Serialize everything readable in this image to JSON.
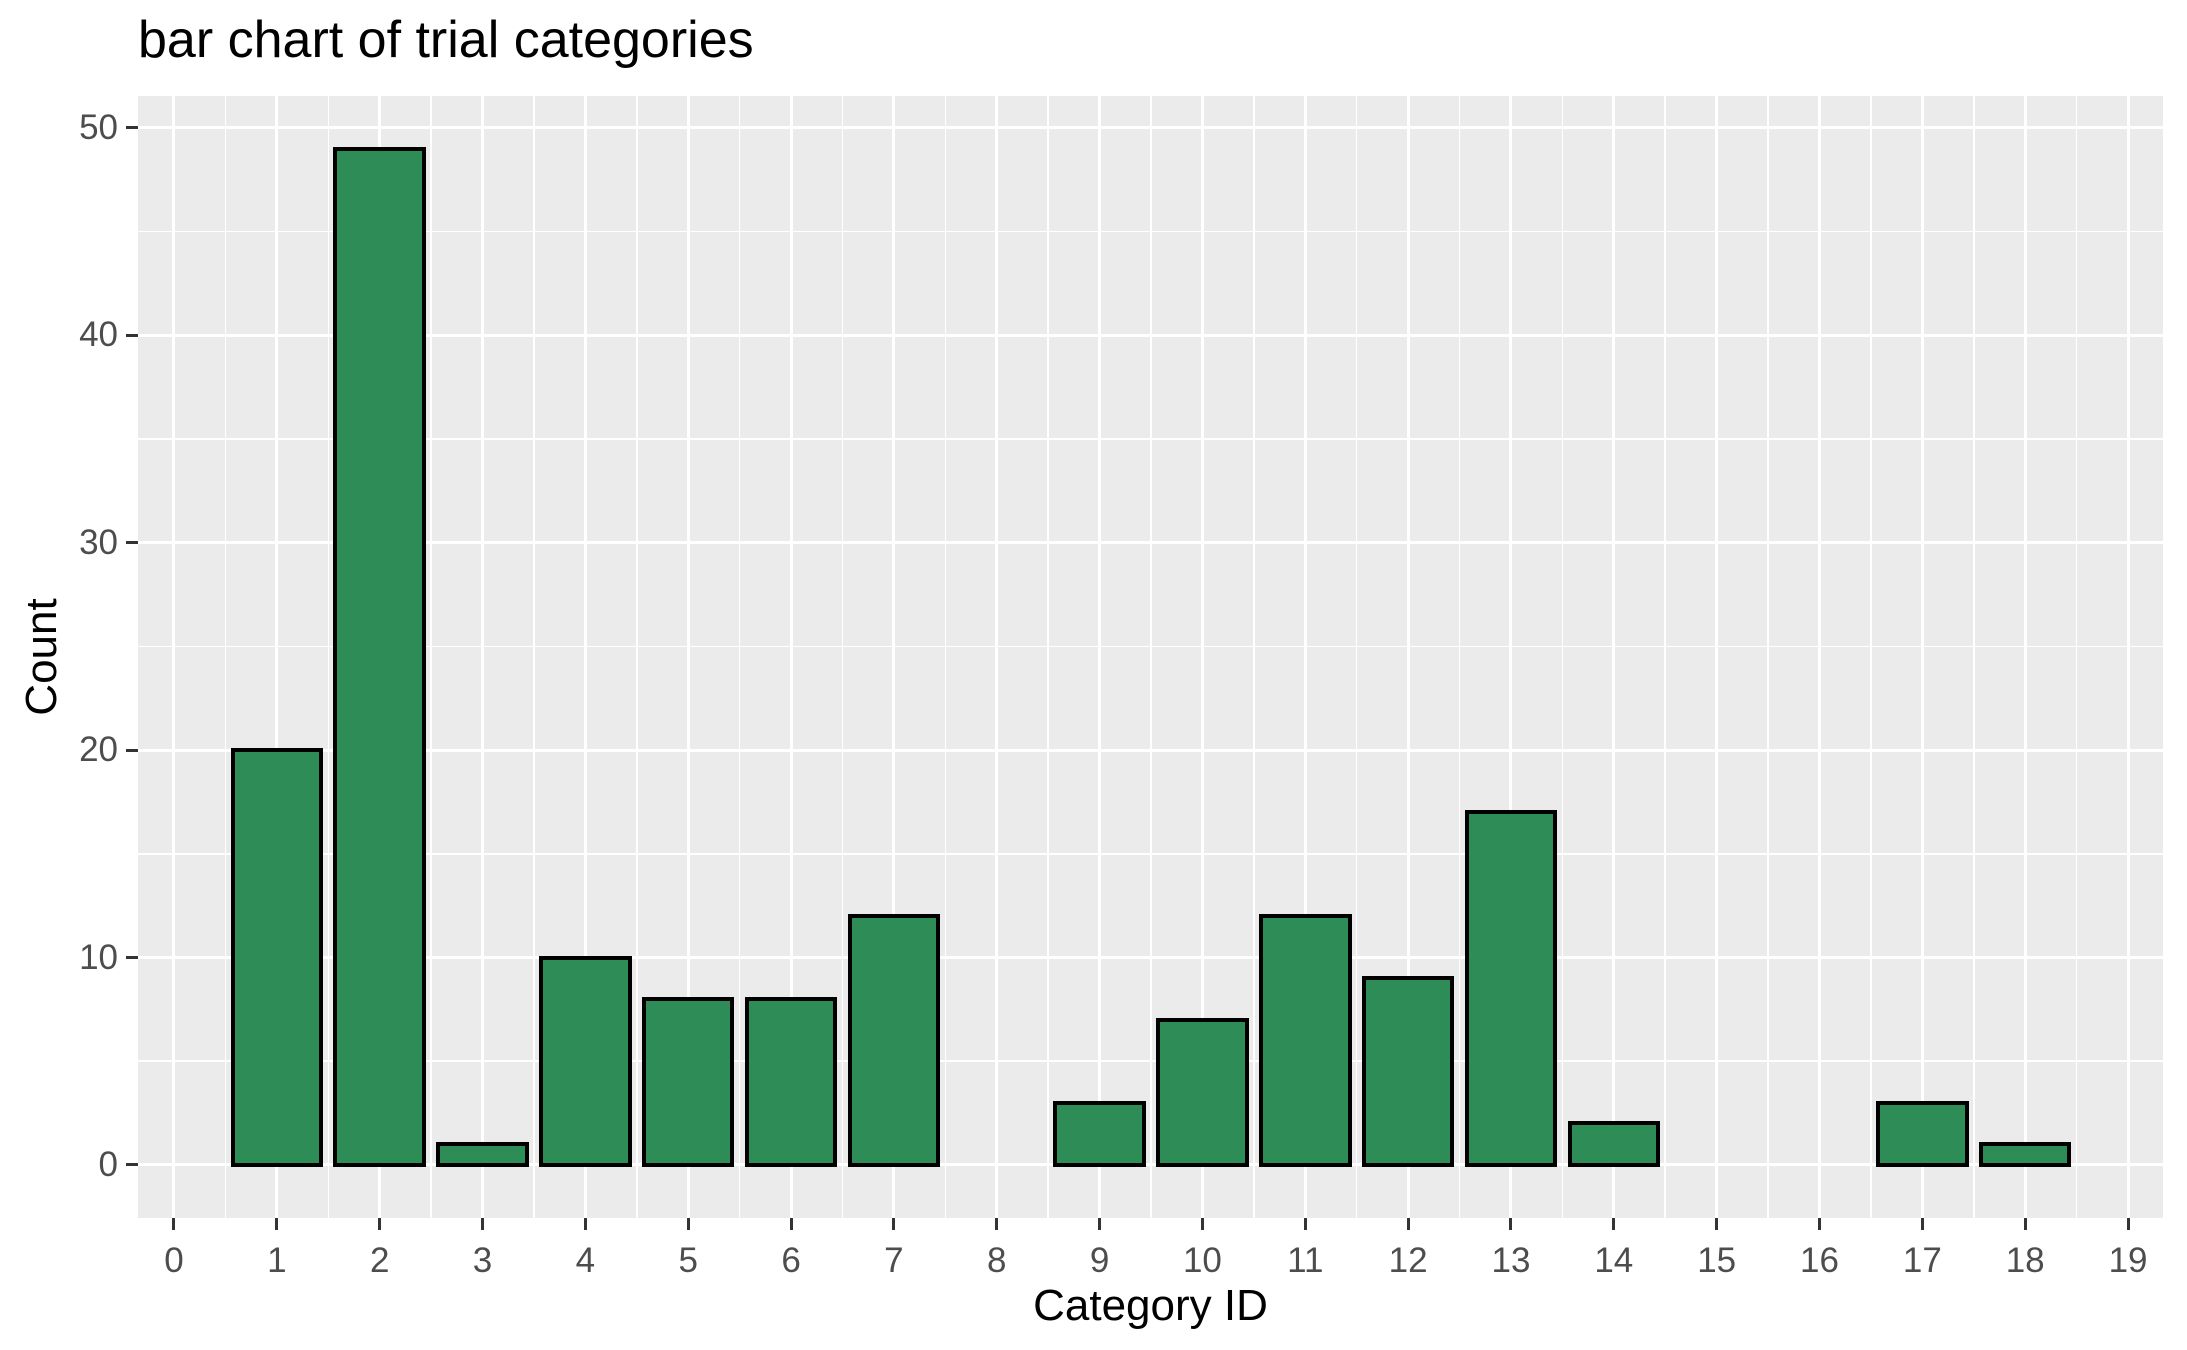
{
  "chart_data": {
    "type": "bar",
    "title": "bar chart of trial categories",
    "xlabel": "Category ID",
    "ylabel": "Count",
    "x": [
      1,
      2,
      3,
      4,
      5,
      6,
      7,
      9,
      10,
      11,
      12,
      13,
      14,
      17,
      18
    ],
    "values": [
      20,
      49,
      1,
      10,
      8,
      8,
      12,
      3,
      7,
      12,
      9,
      17,
      2,
      3,
      1
    ],
    "xticks": [
      0,
      1,
      2,
      3,
      4,
      5,
      6,
      7,
      8,
      9,
      10,
      11,
      12,
      13,
      14,
      15,
      16,
      17,
      18,
      19
    ],
    "yticks": [
      0,
      10,
      20,
      30,
      40,
      50
    ],
    "xlim": [
      -0.35,
      19.34
    ],
    "ylim": [
      -2.56,
      51.54
    ],
    "bar_width": 0.9,
    "grid": "on",
    "legend": "none",
    "colors": {
      "bar_fill": "#2e8c57",
      "bar_stroke": "#000000",
      "panel_background": "#ebebeb",
      "gridline": "#ffffff",
      "tick_mark": "#333333",
      "tick_label": "#4d4d4d",
      "title_text": "#000000"
    }
  }
}
